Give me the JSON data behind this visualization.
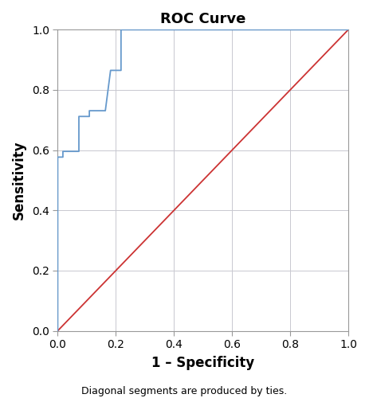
{
  "title": "ROC Curve",
  "xlabel": "1 – Specificity",
  "ylabel": "Sensitivity",
  "footnote": "Diagonal segments are produced by ties.",
  "roc_x": [
    0.0,
    0.0,
    0.0,
    0.018,
    0.018,
    0.036,
    0.055,
    0.073,
    0.073,
    0.091,
    0.109,
    0.109,
    0.164,
    0.182,
    0.2,
    0.218,
    0.218,
    1.0
  ],
  "roc_y": [
    0.0,
    0.058,
    0.577,
    0.577,
    0.596,
    0.596,
    0.596,
    0.596,
    0.712,
    0.712,
    0.712,
    0.731,
    0.731,
    0.865,
    0.865,
    0.865,
    1.0,
    1.0
  ],
  "roc_color": "#6699cc",
  "diag_color": "#cc3333",
  "roc_linewidth": 1.3,
  "diag_linewidth": 1.3,
  "xlim": [
    0.0,
    1.0
  ],
  "ylim": [
    0.0,
    1.0
  ],
  "xticks": [
    0.0,
    0.2,
    0.4,
    0.6,
    0.8,
    1.0
  ],
  "yticks": [
    0.0,
    0.2,
    0.4,
    0.6,
    0.8,
    1.0
  ],
  "grid_color": "#c8c8d0",
  "grid_linewidth": 0.7,
  "background_color": "#ffffff",
  "spine_color": "#999999",
  "title_fontsize": 13,
  "axis_label_fontsize": 12,
  "tick_fontsize": 10,
  "footnote_fontsize": 9
}
